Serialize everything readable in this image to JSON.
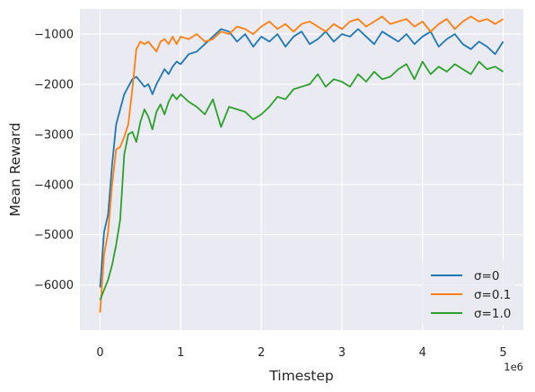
{
  "chart_data": {
    "type": "line",
    "xlabel": "Timestep",
    "ylabel": "Mean Reward",
    "x_offset_label": "1e6",
    "xlim": [
      -0.25,
      5.25
    ],
    "ylim": [
      -6900,
      -500
    ],
    "x_ticks": [
      0,
      1,
      2,
      3,
      4,
      5
    ],
    "x_tick_labels": [
      "0",
      "1",
      "2",
      "3",
      "4",
      "5"
    ],
    "y_ticks": [
      -6000,
      -5000,
      -4000,
      -3000,
      -2000,
      -1000
    ],
    "y_tick_labels": [
      "−6000",
      "−5000",
      "−4000",
      "−3000",
      "−2000",
      "−1000"
    ],
    "grid": true,
    "legend_position": "lower-right",
    "series": [
      {
        "name": "σ=0",
        "color": "#1f77b4",
        "x": [
          0,
          0.05,
          0.1,
          0.15,
          0.2,
          0.25,
          0.3,
          0.35,
          0.4,
          0.45,
          0.5,
          0.55,
          0.6,
          0.65,
          0.7,
          0.75,
          0.8,
          0.85,
          0.9,
          0.95,
          1.0,
          1.1,
          1.2,
          1.3,
          1.4,
          1.5,
          1.6,
          1.7,
          1.8,
          1.9,
          2.0,
          2.1,
          2.2,
          2.3,
          2.4,
          2.5,
          2.6,
          2.7,
          2.8,
          2.9,
          3.0,
          3.1,
          3.2,
          3.3,
          3.4,
          3.5,
          3.6,
          3.7,
          3.8,
          3.9,
          4.0,
          4.1,
          4.2,
          4.3,
          4.4,
          4.5,
          4.6,
          4.7,
          4.8,
          4.9,
          5.0
        ],
        "y": [
          -6050,
          -4950,
          -4600,
          -3600,
          -2800,
          -2500,
          -2200,
          -2050,
          -1900,
          -1850,
          -1950,
          -2050,
          -2000,
          -2200,
          -2000,
          -1850,
          -1700,
          -1800,
          -1650,
          -1550,
          -1600,
          -1400,
          -1350,
          -1200,
          -1050,
          -900,
          -950,
          -1150,
          -1000,
          -1250,
          -1050,
          -1150,
          -1000,
          -1250,
          -1050,
          -950,
          -1200,
          -1100,
          -950,
          -1150,
          -1000,
          -1050,
          -900,
          -1050,
          -1200,
          -950,
          -1050,
          -1150,
          -1000,
          -1200,
          -1050,
          -950,
          -1250,
          -1100,
          -1000,
          -1200,
          -1300,
          -1150,
          -1250,
          -1400,
          -1150
        ]
      },
      {
        "name": "σ=0.1",
        "color": "#ff7f0e",
        "x": [
          0,
          0.05,
          0.1,
          0.15,
          0.2,
          0.25,
          0.3,
          0.35,
          0.4,
          0.45,
          0.5,
          0.55,
          0.6,
          0.65,
          0.7,
          0.75,
          0.8,
          0.85,
          0.9,
          0.95,
          1.0,
          1.1,
          1.2,
          1.3,
          1.4,
          1.5,
          1.6,
          1.7,
          1.8,
          1.9,
          2.0,
          2.1,
          2.2,
          2.3,
          2.4,
          2.5,
          2.6,
          2.7,
          2.8,
          2.9,
          3.0,
          3.1,
          3.2,
          3.3,
          3.4,
          3.5,
          3.6,
          3.7,
          3.8,
          3.9,
          4.0,
          4.1,
          4.2,
          4.3,
          4.4,
          4.5,
          4.6,
          4.7,
          4.8,
          4.9,
          5.0
        ],
        "y": [
          -6550,
          -5400,
          -4950,
          -4000,
          -3300,
          -3250,
          -3050,
          -2800,
          -2100,
          -1300,
          -1150,
          -1200,
          -1150,
          -1250,
          -1350,
          -1150,
          -1100,
          -1200,
          -1050,
          -1200,
          -1050,
          -1100,
          -1000,
          -1150,
          -1100,
          -950,
          -1000,
          -850,
          -900,
          -1000,
          -850,
          -750,
          -900,
          -800,
          -950,
          -800,
          -750,
          -850,
          -950,
          -800,
          -900,
          -750,
          -700,
          -850,
          -750,
          -650,
          -800,
          -750,
          -700,
          -850,
          -750,
          -950,
          -800,
          -700,
          -900,
          -750,
          -650,
          -750,
          -700,
          -800,
          -700
        ]
      },
      {
        "name": "σ=1.0",
        "color": "#2ca02c",
        "x": [
          0,
          0.05,
          0.1,
          0.15,
          0.2,
          0.25,
          0.3,
          0.35,
          0.4,
          0.45,
          0.5,
          0.55,
          0.6,
          0.65,
          0.7,
          0.75,
          0.8,
          0.85,
          0.9,
          0.95,
          1.0,
          1.1,
          1.2,
          1.3,
          1.4,
          1.5,
          1.6,
          1.7,
          1.8,
          1.9,
          2.0,
          2.1,
          2.2,
          2.3,
          2.4,
          2.5,
          2.6,
          2.7,
          2.8,
          2.9,
          3.0,
          3.1,
          3.2,
          3.3,
          3.4,
          3.5,
          3.6,
          3.7,
          3.8,
          3.9,
          4.0,
          4.1,
          4.2,
          4.3,
          4.4,
          4.5,
          4.6,
          4.7,
          4.8,
          4.9,
          5.0
        ],
        "y": [
          -6300,
          -6100,
          -5900,
          -5600,
          -5200,
          -4700,
          -3400,
          -3000,
          -2950,
          -3150,
          -2750,
          -2500,
          -2650,
          -2900,
          -2550,
          -2400,
          -2600,
          -2350,
          -2200,
          -2300,
          -2200,
          -2350,
          -2450,
          -2600,
          -2300,
          -2850,
          -2450,
          -2500,
          -2550,
          -2700,
          -2600,
          -2450,
          -2250,
          -2300,
          -2100,
          -2050,
          -2000,
          -1800,
          -2050,
          -1900,
          -1950,
          -2050,
          -1800,
          -1950,
          -1750,
          -1900,
          -1850,
          -1700,
          -1600,
          -1900,
          -1550,
          -1800,
          -1650,
          -1750,
          -1600,
          -1700,
          -1800,
          -1550,
          -1700,
          -1650,
          -1750
        ]
      }
    ]
  }
}
